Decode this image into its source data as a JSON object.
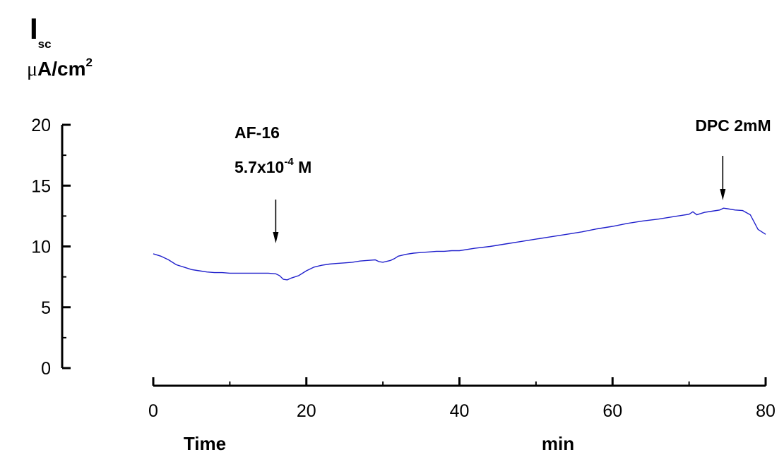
{
  "chart_data": {
    "type": "line",
    "title": "",
    "ylabel": {
      "main": "I",
      "subscript": "sc",
      "unit_prefix": "μ",
      "unit_body": "A/cm",
      "unit_sup": "2"
    },
    "xlabel": {
      "left": "Time",
      "right": "min"
    },
    "xlim": [
      0,
      80
    ],
    "ylim": [
      0,
      20
    ],
    "xticks": [
      0,
      20,
      40,
      60,
      80
    ],
    "yticks": [
      0,
      5,
      10,
      15,
      20
    ],
    "grid": false,
    "line_color": "#2020cc",
    "annotations": [
      {
        "name": "af16",
        "line1": "AF-16",
        "line2_base": "5.7x10",
        "line2_sup": "-4",
        "line2_tail": " M",
        "x": 16
      },
      {
        "name": "dpc",
        "line1": "DPC 2mM",
        "x": 74.4
      }
    ],
    "series": [
      {
        "x": [
          0,
          1,
          2,
          3,
          4,
          5,
          6,
          7,
          8,
          9,
          10,
          11,
          12,
          13,
          14,
          15,
          16,
          16.5,
          17,
          17.5,
          18,
          19,
          20,
          21,
          22,
          23,
          24,
          25,
          26,
          27,
          28,
          29,
          29.5,
          30,
          31,
          31.5,
          32,
          33,
          34,
          35,
          36,
          37,
          38,
          39,
          40,
          42,
          44,
          46,
          48,
          50,
          52,
          54,
          56,
          58,
          60,
          62,
          64,
          66,
          68,
          70,
          70.5,
          71,
          72,
          73,
          74,
          74.5,
          75,
          76,
          77,
          78,
          79,
          80
        ],
        "y": [
          9.4,
          9.2,
          8.9,
          8.5,
          8.3,
          8.1,
          8.0,
          7.9,
          7.85,
          7.85,
          7.8,
          7.8,
          7.8,
          7.8,
          7.8,
          7.8,
          7.75,
          7.6,
          7.3,
          7.25,
          7.4,
          7.6,
          8.0,
          8.3,
          8.45,
          8.55,
          8.6,
          8.65,
          8.7,
          8.8,
          8.85,
          8.9,
          8.75,
          8.7,
          8.85,
          9.0,
          9.2,
          9.35,
          9.45,
          9.5,
          9.55,
          9.6,
          9.6,
          9.65,
          9.65,
          9.85,
          10.0,
          10.2,
          10.4,
          10.6,
          10.8,
          11.0,
          11.2,
          11.45,
          11.65,
          11.9,
          12.1,
          12.25,
          12.45,
          12.65,
          12.85,
          12.6,
          12.8,
          12.9,
          13.0,
          13.15,
          13.1,
          13.0,
          12.95,
          12.6,
          11.4,
          11.0
        ]
      }
    ]
  }
}
